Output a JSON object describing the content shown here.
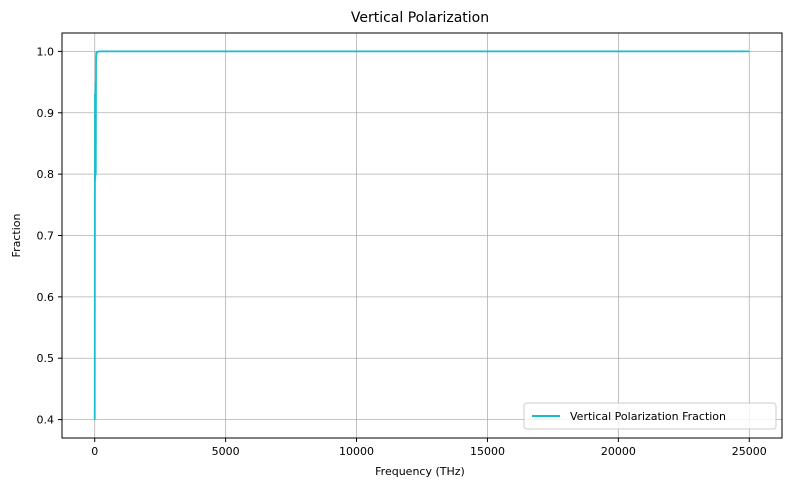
{
  "chart_data": {
    "type": "line",
    "title": "Vertical Polarization",
    "xlabel": "Frequency (THz)",
    "ylabel": "Fraction",
    "xlim": [
      -1250,
      26250
    ],
    "ylim": [
      0.37,
      1.03
    ],
    "xticks": [
      0,
      5000,
      10000,
      15000,
      20000,
      25000
    ],
    "xtick_labels": [
      "0",
      "5000",
      "10000",
      "15000",
      "20000",
      "25000"
    ],
    "yticks": [
      0.4,
      0.5,
      0.6,
      0.7,
      0.8,
      0.9,
      1.0
    ],
    "ytick_labels": [
      "0.4",
      "0.5",
      "0.6",
      "0.7",
      "0.8",
      "0.9",
      "1.0"
    ],
    "grid": true,
    "legend_position": "lower-right",
    "series": [
      {
        "name": "Vertical Polarization Fraction",
        "color": "#17becf",
        "x": [
          0,
          10,
          20,
          30,
          40,
          50,
          60,
          70,
          80,
          100,
          150,
          200,
          500,
          1000,
          5000,
          10000,
          15000,
          20000,
          25000
        ],
        "y": [
          0.4,
          0.93,
          0.79,
          0.95,
          0.8,
          0.99,
          0.998,
          0.995,
          0.999,
          0.999,
          1.0,
          1.0,
          1.0,
          1.0,
          1.0,
          1.0,
          1.0,
          1.0,
          1.0
        ]
      }
    ]
  }
}
